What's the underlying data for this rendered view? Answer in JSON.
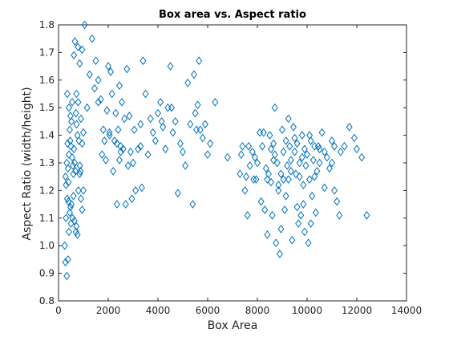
{
  "chart_data": {
    "type": "scatter",
    "title": "Box area vs. Aspect ratio",
    "xlabel": "Box Area",
    "ylabel": "Aspect Ratio (width/height)",
    "xlim": [
      0,
      14000
    ],
    "ylim": [
      0.8,
      1.8
    ],
    "x_ticks": [
      0,
      2000,
      4000,
      6000,
      8000,
      10000,
      12000,
      14000
    ],
    "y_ticks": [
      0.8,
      0.9,
      1.0,
      1.1,
      1.2,
      1.3,
      1.4,
      1.5,
      1.6,
      1.7,
      1.8
    ],
    "grid": false,
    "marker": "diamond",
    "marker_color": "#0072BD",
    "series": [
      {
        "points": [
          [
            250,
            1.0
          ],
          [
            280,
            0.94
          ],
          [
            330,
            0.89
          ],
          [
            380,
            0.95
          ],
          [
            300,
            1.1
          ],
          [
            350,
            1.17
          ],
          [
            400,
            1.16
          ],
          [
            420,
            1.05
          ],
          [
            450,
            1.12
          ],
          [
            480,
            1.14
          ],
          [
            500,
            1.08
          ],
          [
            520,
            1.15
          ],
          [
            560,
            1.1
          ],
          [
            600,
            1.18
          ],
          [
            640,
            1.09
          ],
          [
            700,
            1.05
          ],
          [
            720,
            1.07
          ],
          [
            760,
            1.04
          ],
          [
            800,
            1.2
          ],
          [
            850,
            1.26
          ],
          [
            880,
            1.27
          ],
          [
            900,
            1.17
          ],
          [
            950,
            1.13
          ],
          [
            1000,
            1.2
          ],
          [
            280,
            1.25
          ],
          [
            300,
            1.22
          ],
          [
            330,
            1.3
          ],
          [
            360,
            1.37
          ],
          [
            380,
            1.28
          ],
          [
            400,
            1.23
          ],
          [
            420,
            1.33
          ],
          [
            450,
            1.42
          ],
          [
            470,
            1.38
          ],
          [
            500,
            1.36
          ],
          [
            520,
            1.45
          ],
          [
            550,
            1.32
          ],
          [
            580,
            1.29
          ],
          [
            600,
            1.26
          ],
          [
            620,
            1.35
          ],
          [
            650,
            1.3
          ],
          [
            680,
            1.27
          ],
          [
            700,
            1.48
          ],
          [
            730,
            1.44
          ],
          [
            760,
            1.4
          ],
          [
            790,
            1.52
          ],
          [
            820,
            1.38
          ],
          [
            860,
            1.29
          ],
          [
            900,
            1.46
          ],
          [
            950,
            1.37
          ],
          [
            1000,
            1.41
          ],
          [
            350,
            1.55
          ],
          [
            420,
            1.5
          ],
          [
            480,
            1.47
          ],
          [
            550,
            1.52
          ],
          [
            620,
            1.69
          ],
          [
            660,
            1.74
          ],
          [
            720,
            1.55
          ],
          [
            780,
            1.72
          ],
          [
            850,
            1.66
          ],
          [
            950,
            1.71
          ],
          [
            1050,
            1.8
          ],
          [
            1150,
            1.5
          ],
          [
            1250,
            1.62
          ],
          [
            1350,
            1.75
          ],
          [
            1450,
            1.57
          ],
          [
            1500,
            1.67
          ],
          [
            1600,
            1.6
          ],
          [
            1700,
            1.53
          ],
          [
            1750,
            1.33
          ],
          [
            1800,
            1.42
          ],
          [
            1850,
            1.38
          ],
          [
            1900,
            1.31
          ],
          [
            1950,
            1.49
          ],
          [
            2000,
            1.65
          ],
          [
            2050,
            1.4
          ],
          [
            2100,
            1.63
          ],
          [
            2150,
            1.55
          ],
          [
            2200,
            1.27
          ],
          [
            2250,
            1.38
          ],
          [
            2300,
            1.48
          ],
          [
            2350,
            1.37
          ],
          [
            2400,
            1.42
          ],
          [
            2450,
            1.31
          ],
          [
            2500,
            1.36
          ],
          [
            2550,
            1.52
          ],
          [
            2600,
            1.35
          ],
          [
            2650,
            1.46
          ],
          [
            2700,
            1.15
          ],
          [
            2750,
            1.64
          ],
          [
            2800,
            1.29
          ],
          [
            2850,
            1.47
          ],
          [
            2900,
            1.34
          ],
          [
            2950,
            1.17
          ],
          [
            3000,
            1.3
          ],
          [
            3050,
            1.42
          ],
          [
            3100,
            1.2
          ],
          [
            3200,
            1.35
          ],
          [
            3300,
            1.44
          ],
          [
            3400,
            1.67
          ],
          [
            3500,
            1.55
          ],
          [
            3600,
            1.33
          ],
          [
            3700,
            1.46
          ],
          [
            3800,
            1.41
          ],
          [
            3900,
            1.38
          ],
          [
            4000,
            1.48
          ],
          [
            4100,
            1.52
          ],
          [
            4200,
            1.43
          ],
          [
            4300,
            1.35
          ],
          [
            4400,
            1.5
          ],
          [
            4500,
            1.65
          ],
          [
            4600,
            1.41
          ],
          [
            4700,
            1.45
          ],
          [
            4800,
            1.19
          ],
          [
            4900,
            1.37
          ],
          [
            5000,
            1.34
          ],
          [
            5100,
            1.29
          ],
          [
            5200,
            1.59
          ],
          [
            5300,
            1.44
          ],
          [
            5400,
            1.15
          ],
          [
            5450,
            1.62
          ],
          [
            5500,
            1.48
          ],
          [
            5600,
            1.51
          ],
          [
            5650,
            1.67
          ],
          [
            5700,
            1.42
          ],
          [
            5800,
            1.39
          ],
          [
            5900,
            1.44
          ],
          [
            6000,
            1.33
          ],
          [
            6100,
            1.37
          ],
          [
            6300,
            1.52
          ],
          [
            6800,
            1.32
          ],
          [
            1600,
            1.52
          ],
          [
            2050,
            1.41
          ],
          [
            2450,
            1.58
          ],
          [
            2500,
            1.34
          ],
          [
            3300,
            1.36
          ],
          [
            3350,
            1.21
          ],
          [
            4150,
            1.45
          ],
          [
            4550,
            1.5
          ],
          [
            5550,
            1.42
          ],
          [
            2350,
            1.15
          ],
          [
            7300,
            1.26
          ],
          [
            7400,
            1.36
          ],
          [
            7500,
            1.2
          ],
          [
            7550,
            1.25
          ],
          [
            7600,
            1.11
          ],
          [
            7650,
            1.36
          ],
          [
            7700,
            1.29
          ],
          [
            7800,
            1.34
          ],
          [
            7850,
            1.24
          ],
          [
            7900,
            1.32
          ],
          [
            8000,
            1.3
          ],
          [
            8100,
            1.41
          ],
          [
            8200,
            1.36
          ],
          [
            8300,
            1.13
          ],
          [
            8350,
            1.28
          ],
          [
            8400,
            1.04
          ],
          [
            8450,
            1.26
          ],
          [
            8500,
            1.4
          ],
          [
            8550,
            1.23
          ],
          [
            8600,
            1.11
          ],
          [
            8650,
            1.37
          ],
          [
            8700,
            1.5
          ],
          [
            8750,
            1.01
          ],
          [
            8800,
            1.3
          ],
          [
            8850,
            1.2
          ],
          [
            8900,
            0.97
          ],
          [
            8950,
            1.26
          ],
          [
            9000,
            1.42
          ],
          [
            9050,
            1.34
          ],
          [
            9100,
            1.13
          ],
          [
            9150,
            1.38
          ],
          [
            9200,
            1.29
          ],
          [
            9250,
            1.24
          ],
          [
            9300,
            1.36
          ],
          [
            9350,
            1.31
          ],
          [
            9400,
            1.02
          ],
          [
            9450,
            1.43
          ],
          [
            9500,
            1.34
          ],
          [
            9550,
            1.26
          ],
          [
            9600,
            1.37
          ],
          [
            9650,
            1.08
          ],
          [
            9700,
            1.3
          ],
          [
            9750,
            1.11
          ],
          [
            9800,
            1.4
          ],
          [
            9850,
            1.22
          ],
          [
            9900,
            1.05
          ],
          [
            9950,
            1.29
          ],
          [
            10000,
            1.33
          ],
          [
            10050,
            1.01
          ],
          [
            10100,
            1.24
          ],
          [
            10150,
            1.38
          ],
          [
            10200,
            1.18
          ],
          [
            10250,
            1.31
          ],
          [
            10300,
            1.36
          ],
          [
            10350,
            1.12
          ],
          [
            10400,
            1.27
          ],
          [
            10500,
            1.35
          ],
          [
            10600,
            1.41
          ],
          [
            10700,
            1.21
          ],
          [
            10800,
            1.32
          ],
          [
            10900,
            1.28
          ],
          [
            11000,
            1.38
          ],
          [
            11100,
            1.36
          ],
          [
            11200,
            1.16
          ],
          [
            11300,
            1.11
          ],
          [
            11500,
            1.36
          ],
          [
            11700,
            1.43
          ],
          [
            12000,
            1.35
          ],
          [
            12200,
            1.32
          ],
          [
            12400,
            1.11
          ],
          [
            8150,
            1.16
          ],
          [
            8250,
            1.41
          ],
          [
            8550,
            1.35
          ],
          [
            8650,
            1.31
          ],
          [
            8850,
            1.22
          ],
          [
            9050,
            1.24
          ],
          [
            9150,
            1.18
          ],
          [
            9350,
            1.27
          ],
          [
            9500,
            1.39
          ],
          [
            9700,
            1.25
          ],
          [
            9800,
            1.32
          ],
          [
            9900,
            1.35
          ],
          [
            10100,
            1.4
          ],
          [
            10300,
            1.25
          ],
          [
            10500,
            1.3
          ],
          [
            10700,
            1.34
          ],
          [
            11000,
            1.3
          ],
          [
            11100,
            1.2
          ],
          [
            8400,
            1.24
          ],
          [
            8950,
            1.06
          ],
          [
            9600,
            1.14
          ],
          [
            10150,
            1.08
          ],
          [
            7350,
            1.33
          ],
          [
            7950,
            1.24
          ],
          [
            8700,
            1.33
          ],
          [
            9250,
            1.46
          ],
          [
            9850,
            1.15
          ],
          [
            10450,
            1.36
          ],
          [
            11350,
            1.34
          ],
          [
            11900,
            1.39
          ]
        ]
      }
    ]
  }
}
